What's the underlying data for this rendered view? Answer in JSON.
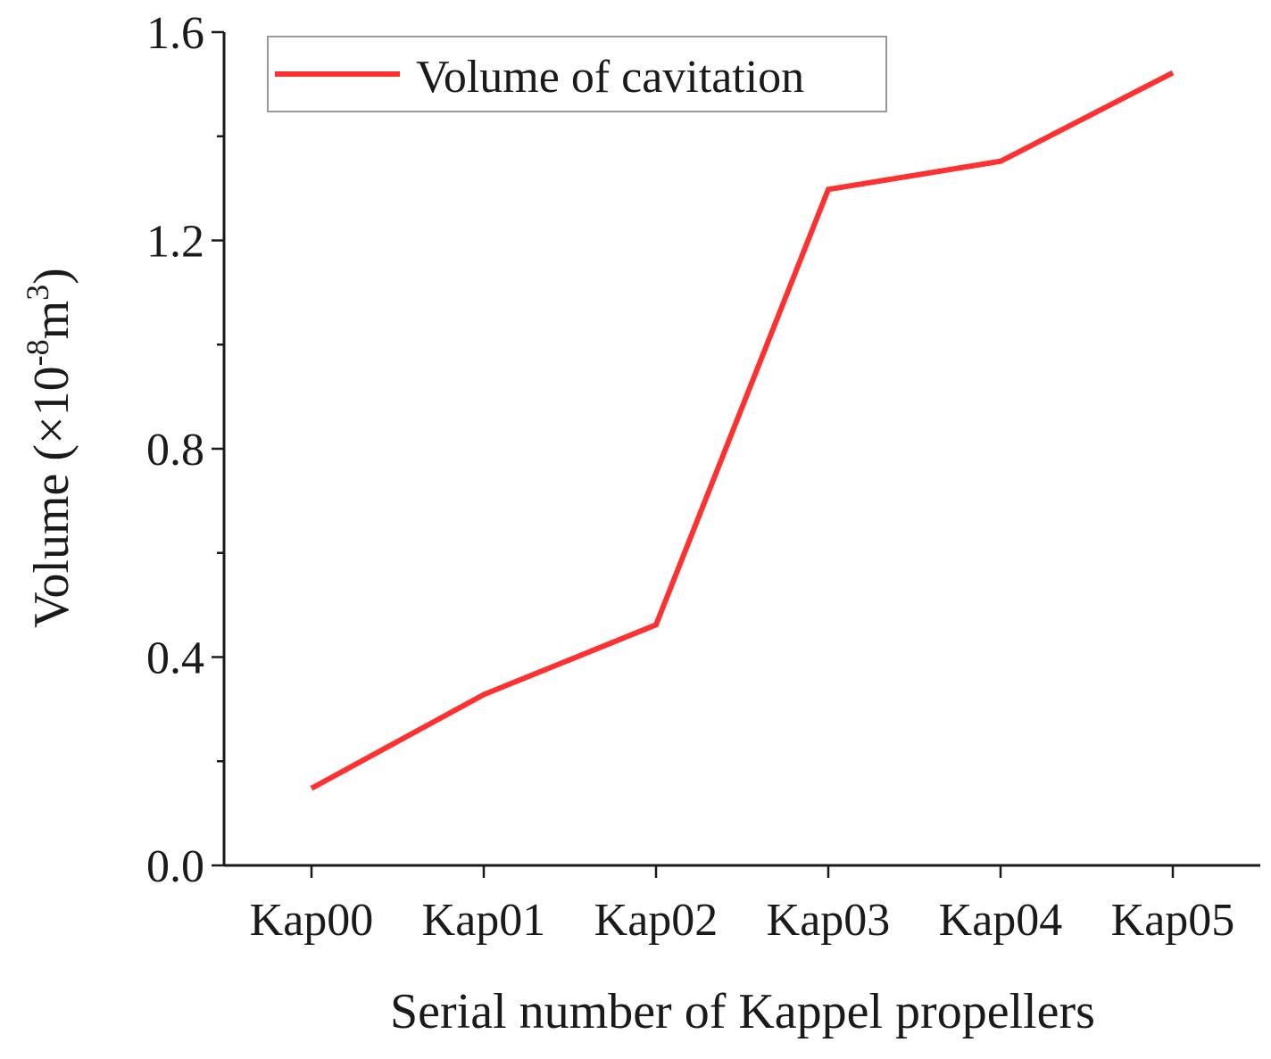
{
  "chart_data": {
    "type": "line",
    "title": "",
    "categories": [
      "Kap00",
      "Kap01",
      "Kap02",
      "Kap03",
      "Kap04",
      "Kap05"
    ],
    "series": [
      {
        "name": "Volume of cavitation",
        "color": "#ff3030",
        "values": [
          0.148,
          0.328,
          0.462,
          1.298,
          1.352,
          1.522
        ]
      }
    ],
    "xlabel": "Serial number of Kappel propellers",
    "ylabel": {
      "prefix": "Volume (×10",
      "exp1": "-8",
      "mid": "m",
      "exp2": "3",
      "suffix": ")"
    },
    "ylim": [
      0.0,
      1.6
    ],
    "yticks": [
      "0.0",
      "0.4",
      "0.8",
      "1.2",
      "1.6"
    ],
    "legend_position": "top-left",
    "grid": false
  }
}
